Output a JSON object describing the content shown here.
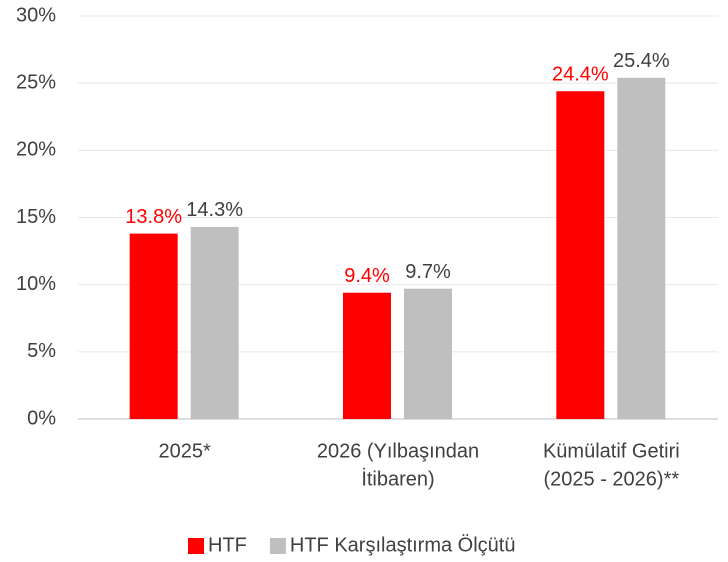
{
  "chart_data": {
    "type": "bar",
    "categories": [
      [
        "2025*"
      ],
      [
        "2026 (Yılbaşından",
        "İtibaren)"
      ],
      [
        "Kümülatif Getiri",
        "(2025 - 2026)**"
      ]
    ],
    "series": [
      {
        "name": "HTF",
        "color": "#ff0000",
        "values": [
          13.8,
          9.4,
          24.4
        ],
        "value_labels": [
          "13.8%",
          "9.4%",
          "24.4%"
        ]
      },
      {
        "name": "HTF Karşılaştırma Ölçütü",
        "color": "#bfbfbf",
        "values": [
          14.3,
          9.7,
          25.4
        ],
        "value_labels": [
          "14.3%",
          "9.7%",
          "25.4%"
        ]
      }
    ],
    "ylim": [
      0,
      30
    ],
    "yticks": [
      {
        "value": 0,
        "label": "0%"
      },
      {
        "value": 5,
        "label": "5%"
      },
      {
        "value": 10,
        "label": "10%"
      },
      {
        "value": 15,
        "label": "15%"
      },
      {
        "value": 20,
        "label": "20%"
      },
      {
        "value": 25,
        "label": "25%"
      },
      {
        "value": 30,
        "label": "30%"
      }
    ],
    "grid": true,
    "legend": "bottom"
  }
}
